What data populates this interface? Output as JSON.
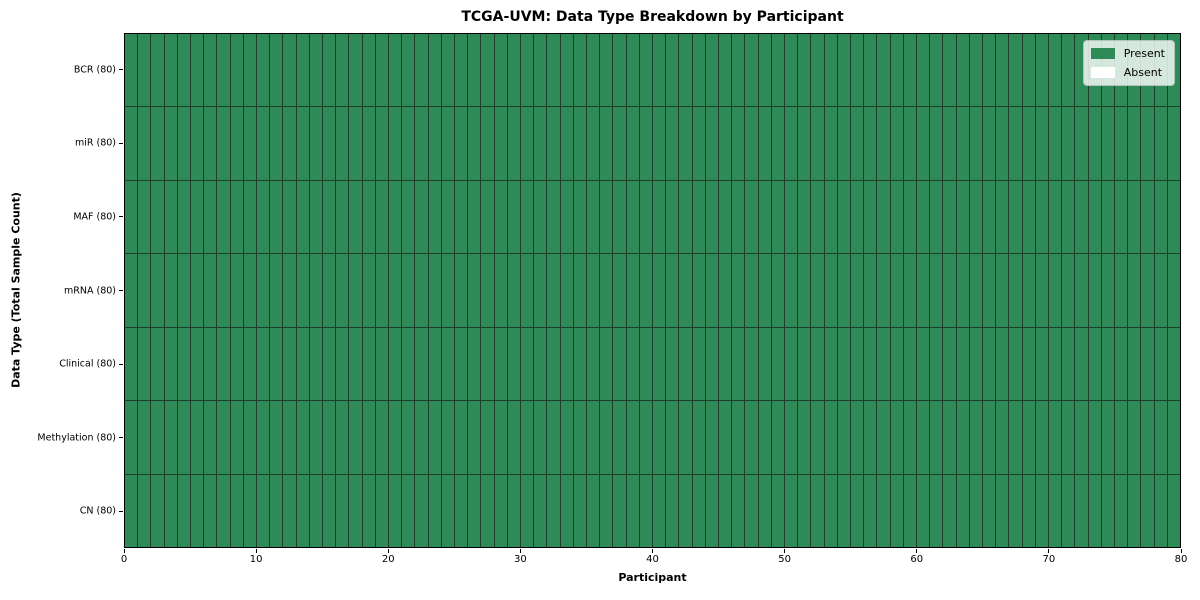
{
  "chart_data": {
    "type": "heatmap",
    "title": "TCGA-UVM: Data Type Breakdown by Participant",
    "xlabel": "Participant",
    "ylabel": "Data Type (Total Sample Count)",
    "xlim": [
      0,
      80
    ],
    "x_ticks": [
      0,
      10,
      20,
      30,
      40,
      50,
      60,
      70,
      80
    ],
    "n_participants": 80,
    "categories": [
      "BCR (80)",
      "miR (80)",
      "MAF (80)",
      "mRNA (80)",
      "Clinical (80)",
      "Methylation (80)",
      "CN (80)"
    ],
    "rows": [
      {
        "label": "BCR (80)",
        "data_type": "BCR",
        "total_samples": 80,
        "present_participants": 80,
        "absent_participants": 0
      },
      {
        "label": "miR (80)",
        "data_type": "miR",
        "total_samples": 80,
        "present_participants": 80,
        "absent_participants": 0
      },
      {
        "label": "MAF (80)",
        "data_type": "MAF",
        "total_samples": 80,
        "present_participants": 80,
        "absent_participants": 0
      },
      {
        "label": "mRNA (80)",
        "data_type": "mRNA",
        "total_samples": 80,
        "present_participants": 80,
        "absent_participants": 0
      },
      {
        "label": "Clinical (80)",
        "data_type": "Clinical",
        "total_samples": 80,
        "present_participants": 80,
        "absent_participants": 0
      },
      {
        "label": "Methylation (80)",
        "data_type": "Methylation",
        "total_samples": 80,
        "present_participants": 80,
        "absent_participants": 0
      },
      {
        "label": "CN (80)",
        "data_type": "CN",
        "total_samples": 80,
        "present_participants": 80,
        "absent_participants": 0
      }
    ],
    "legend": {
      "position": "upper right",
      "entries": [
        {
          "label": "Present",
          "color": "#2e8b57"
        },
        {
          "label": "Absent",
          "color": "#ffffff"
        }
      ]
    },
    "grid": false,
    "colors": {
      "present": "#2e8b57",
      "absent": "#ffffff",
      "cell_border": "#1f3d2b",
      "axis": "#000000",
      "background": "#ffffff"
    }
  }
}
